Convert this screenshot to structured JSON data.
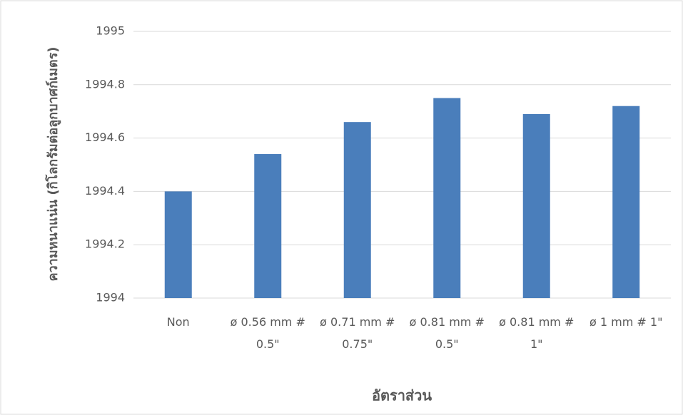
{
  "chart_data": {
    "type": "bar",
    "categories": [
      "Non",
      "ø 0.56 mm # 0.5\"",
      "ø 0.71 mm # 0.75\"",
      "ø 0.81 mm # 0.5\"",
      "ø 0.81 mm # 1\"",
      "ø 1 mm # 1\""
    ],
    "values": [
      1994.4,
      1994.54,
      1994.66,
      1994.75,
      1994.69,
      1994.72
    ],
    "color": "#4a7ebb",
    "x_label": "อัตราส่วน",
    "y_label": "ความหนาแน่น (กิโลกรัมต่อลูกบาศก์เมตร)",
    "ylim": [
      1994,
      1995
    ],
    "yticks": [
      1994,
      1994.2,
      1994.4,
      1994.6,
      1994.8,
      1995
    ],
    "grid": true
  }
}
